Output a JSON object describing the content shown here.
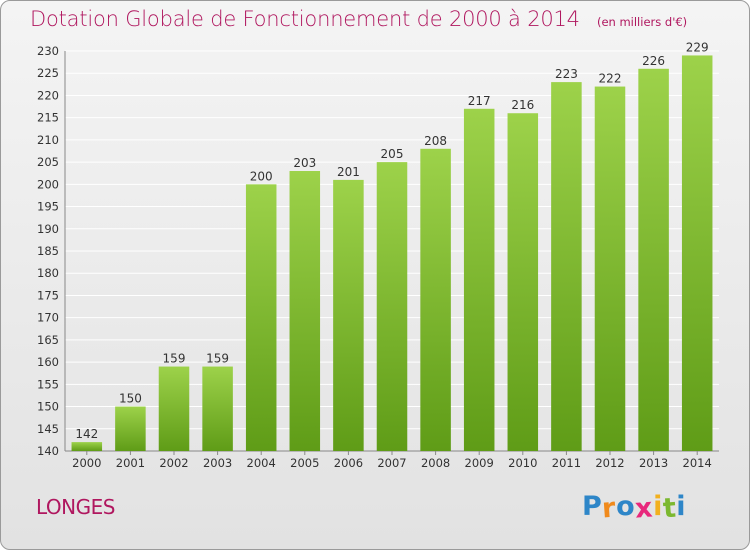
{
  "chart_data": {
    "type": "bar",
    "title": "Dotation Globale de Fonctionnement de 2000 à 2014",
    "subtitle": "(en milliers d'€)",
    "categories": [
      "2000",
      "2001",
      "2002",
      "2003",
      "2004",
      "2005",
      "2006",
      "2007",
      "2008",
      "2009",
      "2010",
      "2011",
      "2012",
      "2013",
      "2014"
    ],
    "values": [
      142,
      150,
      159,
      159,
      200,
      203,
      201,
      205,
      208,
      217,
      216,
      223,
      222,
      226,
      229
    ],
    "ylim": [
      140,
      230
    ],
    "yticks": [
      140,
      145,
      150,
      155,
      160,
      165,
      170,
      175,
      180,
      185,
      190,
      195,
      200,
      205,
      210,
      215,
      220,
      225,
      230
    ],
    "grid": true,
    "bar_color": "#7fbf2e"
  },
  "commune": "LONGES",
  "logo": {
    "letters": [
      "P",
      "r",
      "o",
      "x",
      "i",
      "t",
      "i"
    ],
    "colors": [
      "#2e86c8",
      "#f08a1c",
      "#2e86c8",
      "#e8287c",
      "#f2b01e",
      "#7cb82f",
      "#2e86c8"
    ]
  }
}
